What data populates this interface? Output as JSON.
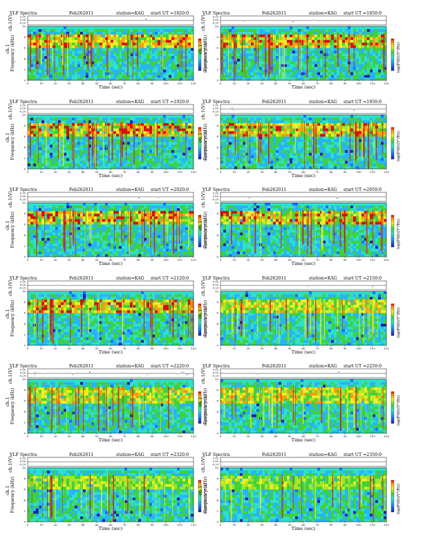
{
  "panel_header": {
    "title": "VLF Spectra",
    "date": "Feb262011",
    "station": "station=KAG",
    "start_prefix": "start  UT ="
  },
  "axes": {
    "ch1_label": "ch.1(V)",
    "ch1_ticks": [
      "0.20",
      "0.00",
      "-0.20"
    ],
    "freq_label": "Frequency  (kHz)",
    "freq_prefix": "ch.1",
    "freq_ticks": [
      "0",
      "2",
      "4",
      "6",
      "8",
      "10"
    ],
    "time_label": "Time  (sec)",
    "time_ticks": [
      "0",
      "10",
      "20",
      "30",
      "40",
      "50",
      "60",
      "70",
      "80",
      "90",
      "100",
      "110",
      "120"
    ],
    "colorbar_label": "log(PSD)(V²/Hz)",
    "colorbar_top": "-",
    "colorbar_bottom": "-"
  },
  "chart_data": [
    {
      "type": "heatmap",
      "start_ut": "1820:0",
      "xlim": [
        0,
        120
      ],
      "ylim": [
        0,
        10
      ],
      "band_kHz": [
        6,
        8.6
      ],
      "intensity": "strong"
    },
    {
      "type": "heatmap",
      "start_ut": "1850:0",
      "xlim": [
        0,
        120
      ],
      "ylim": [
        0,
        10
      ],
      "band_kHz": [
        6,
        8.6
      ],
      "intensity": "strong"
    },
    {
      "type": "heatmap",
      "start_ut": "1920:0",
      "xlim": [
        0,
        120
      ],
      "ylim": [
        0,
        10
      ],
      "band_kHz": [
        6,
        8.6
      ],
      "intensity": "strong"
    },
    {
      "type": "heatmap",
      "start_ut": "1950:0",
      "xlim": [
        0,
        120
      ],
      "ylim": [
        0,
        10
      ],
      "band_kHz": [
        6,
        8.6
      ],
      "intensity": "strong"
    },
    {
      "type": "heatmap",
      "start_ut": "2020:0",
      "xlim": [
        0,
        120
      ],
      "ylim": [
        0,
        10
      ],
      "band_kHz": [
        6,
        8.6
      ],
      "intensity": "strong"
    },
    {
      "type": "heatmap",
      "start_ut": "2050:0",
      "xlim": [
        0,
        120
      ],
      "ylim": [
        0,
        10
      ],
      "band_kHz": [
        6,
        8.6
      ],
      "intensity": "strong"
    },
    {
      "type": "heatmap",
      "start_ut": "2120:0",
      "xlim": [
        0,
        120
      ],
      "ylim": [
        0,
        10
      ],
      "band_kHz": [
        6,
        8.6
      ],
      "intensity": "strong"
    },
    {
      "type": "heatmap",
      "start_ut": "2150:0",
      "xlim": [
        0,
        120
      ],
      "ylim": [
        0,
        10
      ],
      "band_kHz": [
        6,
        8.6
      ],
      "intensity": "medium"
    },
    {
      "type": "heatmap",
      "start_ut": "2220:0",
      "xlim": [
        0,
        120
      ],
      "ylim": [
        0,
        10
      ],
      "band_kHz": [
        5.5,
        8.6
      ],
      "intensity": "medium"
    },
    {
      "type": "heatmap",
      "start_ut": "2250:0",
      "xlim": [
        0,
        120
      ],
      "ylim": [
        0,
        10
      ],
      "band_kHz": [
        5.5,
        8.6
      ],
      "intensity": "medium"
    },
    {
      "type": "heatmap",
      "start_ut": "2320:0",
      "xlim": [
        0,
        120
      ],
      "ylim": [
        0,
        10
      ],
      "band_kHz": [
        6,
        8.6
      ],
      "intensity": "weak"
    },
    {
      "type": "heatmap",
      "start_ut": "2350:0",
      "xlim": [
        0,
        120
      ],
      "ylim": [
        0,
        10
      ],
      "band_kHz": [
        6,
        8.6
      ],
      "intensity": "weak"
    }
  ]
}
